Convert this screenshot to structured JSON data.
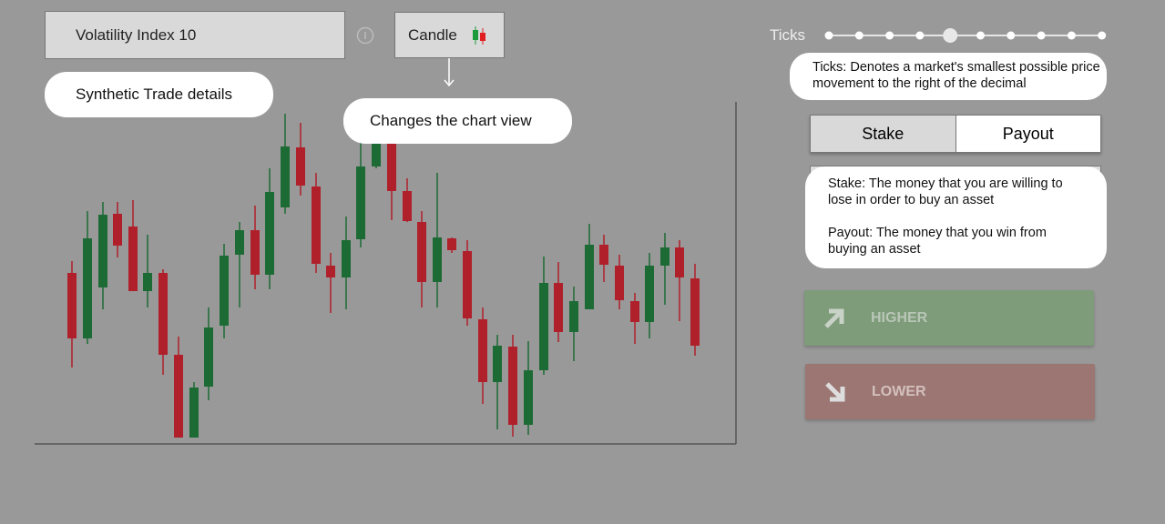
{
  "header": {
    "market": "Volatility Index 10",
    "chart_type": "Candle"
  },
  "tooltips": {
    "synthetic": "Synthetic Trade details",
    "chart_view": "Changes the chart view",
    "ticks": "Ticks: Denotes a market's smallest possible price movement to the right of the decimal",
    "stake_payout": [
      "Stake: The money that you are willing to lose in order to buy an asset",
      "Payout: The money that you win from buying an asset"
    ]
  },
  "trade": {
    "ticks_label": "Ticks",
    "stake": "Stake",
    "payout": "Payout",
    "higher": "HIGHER",
    "lower": "LOWER"
  }
}
